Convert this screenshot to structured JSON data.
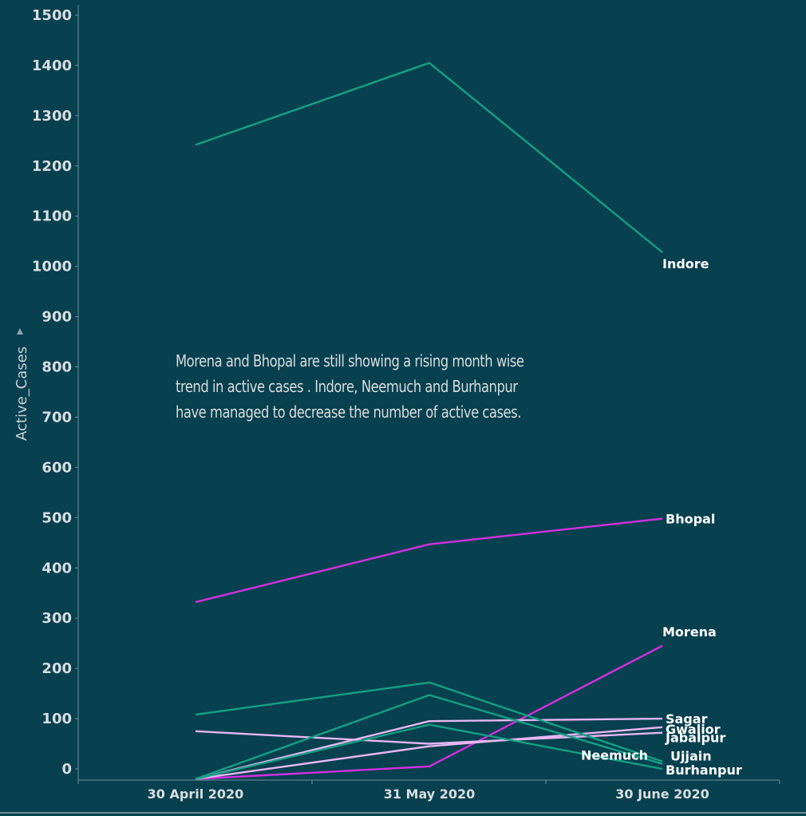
{
  "chart_data": {
    "type": "line",
    "x": [
      "30 April 2020",
      "31 May 2020",
      "30 June 2020"
    ],
    "ylabel": "Active_Cases",
    "ylim": [
      -20,
      1520
    ],
    "yticks": [
      0,
      100,
      200,
      300,
      400,
      500,
      600,
      700,
      800,
      900,
      1000,
      1100,
      1200,
      1300,
      1400,
      1500
    ],
    "grid": false,
    "annotation": "Morena and Bhopal are still showing a  rising month wise trend in active cases .  Indore, Neemuch and Burhanpur have managed to decrease the number of active cases.",
    "series": [
      {
        "name": "Indore",
        "values": [
          1242,
          1405,
          1028
        ],
        "color": "#14a085"
      },
      {
        "name": "Bhopal",
        "values": [
          332,
          447,
          498
        ],
        "color": "#d42fe0"
      },
      {
        "name": "Morena",
        "values": [
          -20,
          5,
          245
        ],
        "color": "#d42fe0"
      },
      {
        "name": "Sagar",
        "values": [
          -20,
          95,
          100
        ],
        "color": "#e7b7f2"
      },
      {
        "name": "Gwalior",
        "values": [
          -20,
          45,
          83
        ],
        "color": "#e7b7f2"
      },
      {
        "name": "Jabalpur",
        "values": [
          75,
          50,
          72
        ],
        "color": "#e7b7f2"
      },
      {
        "name": "Ujjain",
        "values": [
          -20,
          147,
          10
        ],
        "color": "#14a085"
      },
      {
        "name": "Neemuch",
        "values": [
          108,
          172,
          15
        ],
        "color": "#14a085"
      },
      {
        "name": "Burhanpur",
        "values": [
          -20,
          88,
          0
        ],
        "color": "#14a085"
      }
    ],
    "label_offsets": {
      "Indore": [
        0,
        20
      ],
      "Bhopal": [
        4,
        6
      ],
      "Morena": [
        0,
        -12
      ],
      "Sagar": [
        4,
        6
      ],
      "Gwalior": [
        4,
        8
      ],
      "Jabalpur": [
        4,
        12
      ],
      "Ujjain": [
        10,
        -4
      ],
      "Neemuch": [
        -102,
        -2
      ],
      "Burhanpur": [
        4,
        7
      ]
    }
  }
}
